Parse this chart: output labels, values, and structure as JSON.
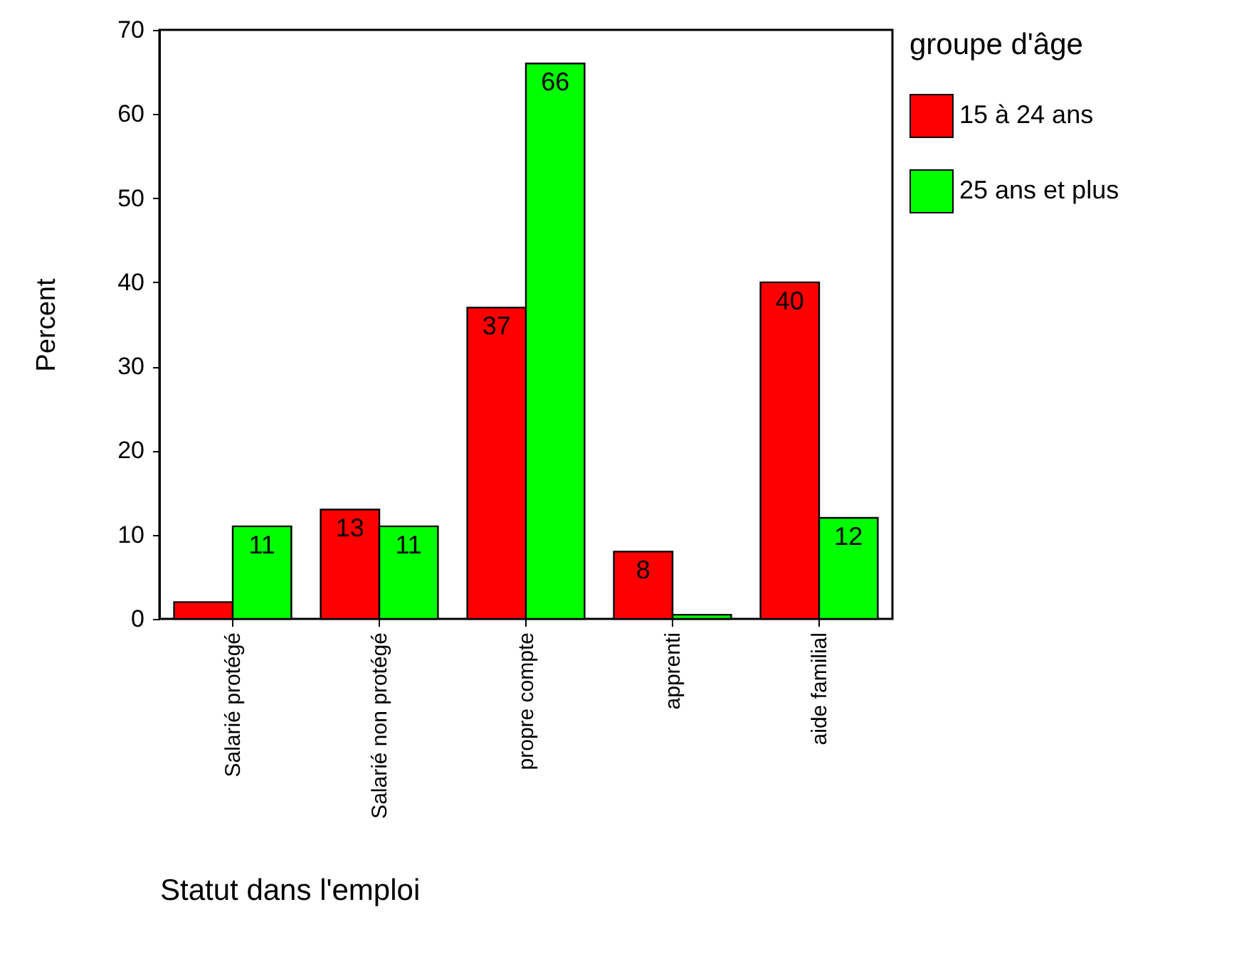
{
  "chart_data": {
    "type": "bar",
    "xlabel": "Statut dans l'emploi",
    "ylabel": "Percent",
    "legend_title": "groupe d'âge",
    "legend": "right",
    "categories": [
      "Salarié protégé",
      "Salarié non protégé",
      "propre compte",
      "apprenti",
      "aide familial"
    ],
    "series": [
      {
        "name": "15 à 24 ans",
        "color": "#ff0000",
        "values": [
          2,
          13,
          37,
          8,
          40
        ],
        "value_labels": [
          null,
          "13",
          "37",
          "8",
          "40"
        ]
      },
      {
        "name": "25 ans et plus",
        "color": "#00ff00",
        "values": [
          11,
          11,
          66,
          0.5,
          12
        ],
        "value_labels": [
          "11",
          "11",
          "66",
          null,
          "12"
        ]
      }
    ],
    "ylim": [
      0,
      70
    ],
    "yticks": [
      0,
      10,
      20,
      30,
      40,
      50,
      60,
      70
    ],
    "grid": false
  }
}
